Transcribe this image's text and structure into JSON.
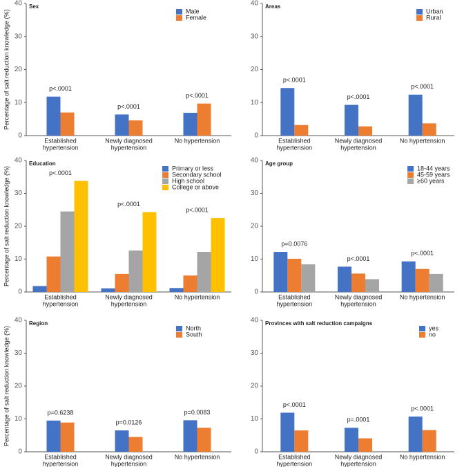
{
  "chart_data": [
    {
      "type": "bar",
      "title": "Sex",
      "y_label": "Percentage of salt reduction knowledge (%)",
      "categories": [
        [
          "Established",
          "hypertension"
        ],
        [
          "Newly diagnosed",
          "hypertension"
        ],
        [
          "No hypertension"
        ]
      ],
      "series": [
        {
          "name": "Male",
          "color": "#4472c4",
          "values": [
            11.8,
            6.4,
            6.9
          ]
        },
        {
          "name": "Female",
          "color": "#ed7d31",
          "values": [
            7.0,
            4.6,
            9.7
          ]
        }
      ],
      "annotations": [
        "p<.0001",
        "p<.0001",
        "p<.0001"
      ],
      "ylim": [
        0,
        40
      ],
      "yticks": [
        0,
        10,
        20,
        30,
        40
      ]
    },
    {
      "type": "bar",
      "title": "Areas",
      "categories": [
        [
          "Established",
          "hypertension"
        ],
        [
          "Newly diagnosed",
          "hypertension"
        ],
        [
          "No hypertension"
        ]
      ],
      "series": [
        {
          "name": "Urban",
          "color": "#4472c4",
          "values": [
            14.4,
            9.3,
            12.4
          ]
        },
        {
          "name": "Rural",
          "color": "#ed7d31",
          "values": [
            3.2,
            2.8,
            3.7
          ]
        }
      ],
      "annotations": [
        "p<.0001",
        "p<.0001",
        "p<.0001"
      ],
      "ylim": [
        0,
        40
      ],
      "yticks": [
        0,
        10,
        20,
        30,
        40
      ]
    },
    {
      "type": "bar",
      "title": "Education",
      "y_label": "Percentage of salt reduction knowledge (%)",
      "categories": [
        [
          "Established",
          "hypertension"
        ],
        [
          "Newly diagnosed",
          "hypertension"
        ],
        [
          "No hypertension"
        ]
      ],
      "series": [
        {
          "name": "Primary or less",
          "color": "#4472c4",
          "values": [
            1.8,
            1.1,
            1.2
          ]
        },
        {
          "name": "Secondary school",
          "color": "#ed7d31",
          "values": [
            10.8,
            5.5,
            5.0
          ]
        },
        {
          "name": "High school",
          "color": "#a5a5a5",
          "values": [
            24.5,
            12.6,
            12.2
          ]
        },
        {
          "name": "College or above",
          "color": "#ffc000",
          "values": [
            33.8,
            24.3,
            22.5
          ]
        }
      ],
      "annotations": [
        "p<.0001",
        "p<.0001",
        "p<.0001"
      ],
      "ylim": [
        0,
        40
      ],
      "yticks": [
        0,
        10,
        20,
        30,
        40
      ]
    },
    {
      "type": "bar",
      "title": "Age group",
      "categories": [
        [
          "Established",
          "hypertension"
        ],
        [
          "Newly diagnosed",
          "hypertension"
        ],
        [
          "No hypertension"
        ]
      ],
      "series": [
        {
          "name": "18-44 years",
          "color": "#4472c4",
          "values": [
            12.2,
            7.7,
            9.3
          ]
        },
        {
          "name": "45-59 years",
          "color": "#ed7d31",
          "values": [
            10.1,
            5.6,
            7.0
          ]
        },
        {
          "name": "≥60 years",
          "color": "#a5a5a5",
          "values": [
            8.4,
            3.9,
            5.5
          ]
        }
      ],
      "annotations": [
        "p=0.0076",
        "p<.0001",
        "p<.0001"
      ],
      "ylim": [
        0,
        40
      ],
      "yticks": [
        0,
        10,
        20,
        30,
        40
      ]
    },
    {
      "type": "bar",
      "title": "Region",
      "y_label": "Percentage of salt reduction knowledge (%)",
      "categories": [
        [
          "Established",
          "hypertension"
        ],
        [
          "Newly diagnosed",
          "hypertension"
        ],
        [
          "No hypertension"
        ]
      ],
      "series": [
        {
          "name": "North",
          "color": "#4472c4",
          "values": [
            9.5,
            6.5,
            9.6
          ]
        },
        {
          "name": "South",
          "color": "#ed7d31",
          "values": [
            8.9,
            4.5,
            7.3
          ]
        }
      ],
      "annotations": [
        "p=0.6238",
        "p=0.0126",
        "p=0.0083"
      ],
      "ylim": [
        0,
        40
      ],
      "yticks": [
        0,
        10,
        20,
        30,
        40
      ]
    },
    {
      "type": "bar",
      "title": "Provinces with salt reduction campaigns",
      "categories": [
        [
          "Established",
          "hypertension"
        ],
        [
          "Newly diagnosed",
          "hypertension"
        ],
        [
          "No hypertension"
        ]
      ],
      "series": [
        {
          "name": "yes",
          "color": "#4472c4",
          "values": [
            11.9,
            7.3,
            10.7
          ]
        },
        {
          "name": "no",
          "color": "#ed7d31",
          "values": [
            6.5,
            4.1,
            6.6
          ]
        }
      ],
      "annotations": [
        "p<.0001",
        "p=.0001",
        "p<.0001"
      ],
      "ylim": [
        0,
        40
      ],
      "yticks": [
        0,
        10,
        20,
        30,
        40
      ]
    }
  ]
}
